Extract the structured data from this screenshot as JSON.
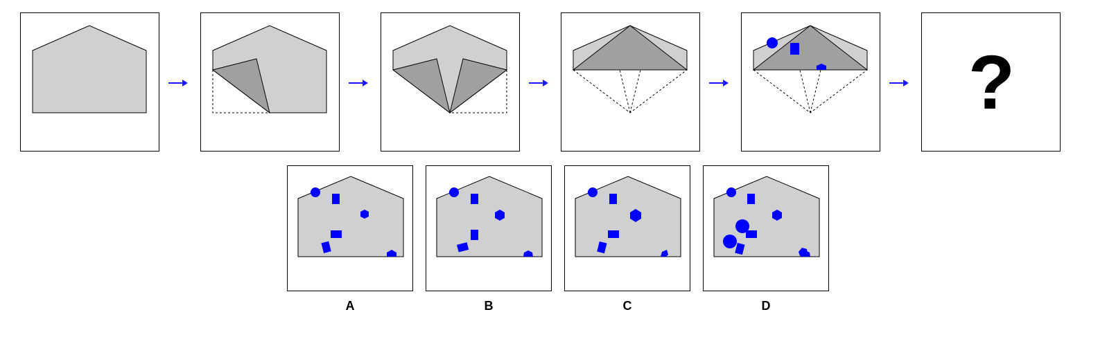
{
  "puzzle": {
    "question_mark": "?",
    "options": [
      {
        "label": "A"
      },
      {
        "label": "B"
      },
      {
        "label": "C"
      },
      {
        "label": "D"
      }
    ]
  },
  "colors": {
    "paper": "#d0d0d0",
    "fold": "#a0a0a0",
    "shape": "#0000ff",
    "arrow": "#1a1aff",
    "border": "#000000"
  }
}
